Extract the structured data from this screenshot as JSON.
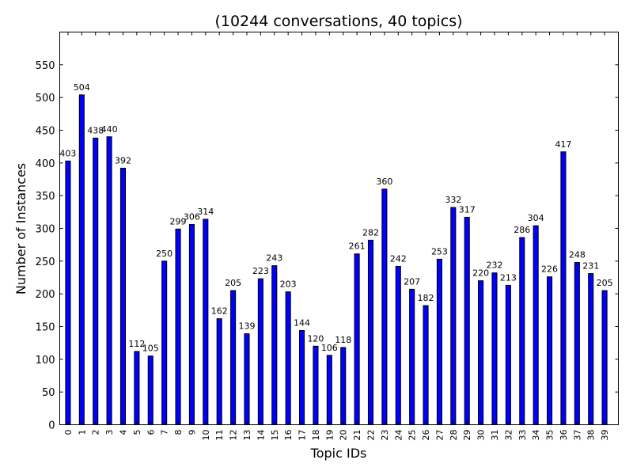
{
  "chart_data": {
    "type": "bar",
    "title": "(10244 conversations, 40 topics)",
    "xlabel": "Topic IDs",
    "ylabel": "Number of Instances",
    "categories": [
      "0",
      "1",
      "2",
      "3",
      "4",
      "5",
      "6",
      "7",
      "8",
      "9",
      "10",
      "11",
      "12",
      "13",
      "14",
      "15",
      "16",
      "17",
      "18",
      "19",
      "20",
      "21",
      "22",
      "23",
      "24",
      "25",
      "26",
      "27",
      "28",
      "29",
      "30",
      "31",
      "32",
      "33",
      "34",
      "35",
      "36",
      "37",
      "38",
      "39"
    ],
    "values": [
      403,
      504,
      438,
      440,
      392,
      112,
      105,
      250,
      299,
      306,
      314,
      162,
      205,
      139,
      223,
      243,
      203,
      144,
      120,
      106,
      118,
      261,
      282,
      360,
      242,
      207,
      182,
      253,
      332,
      317,
      220,
      232,
      213,
      286,
      304,
      226,
      417,
      248,
      231,
      205
    ],
    "ylim": [
      0,
      600
    ],
    "yticks": [
      0,
      50,
      100,
      150,
      200,
      250,
      300,
      350,
      400,
      450,
      500,
      550
    ],
    "bar_color": "#0000ff",
    "grid": false,
    "data_labels": true
  }
}
